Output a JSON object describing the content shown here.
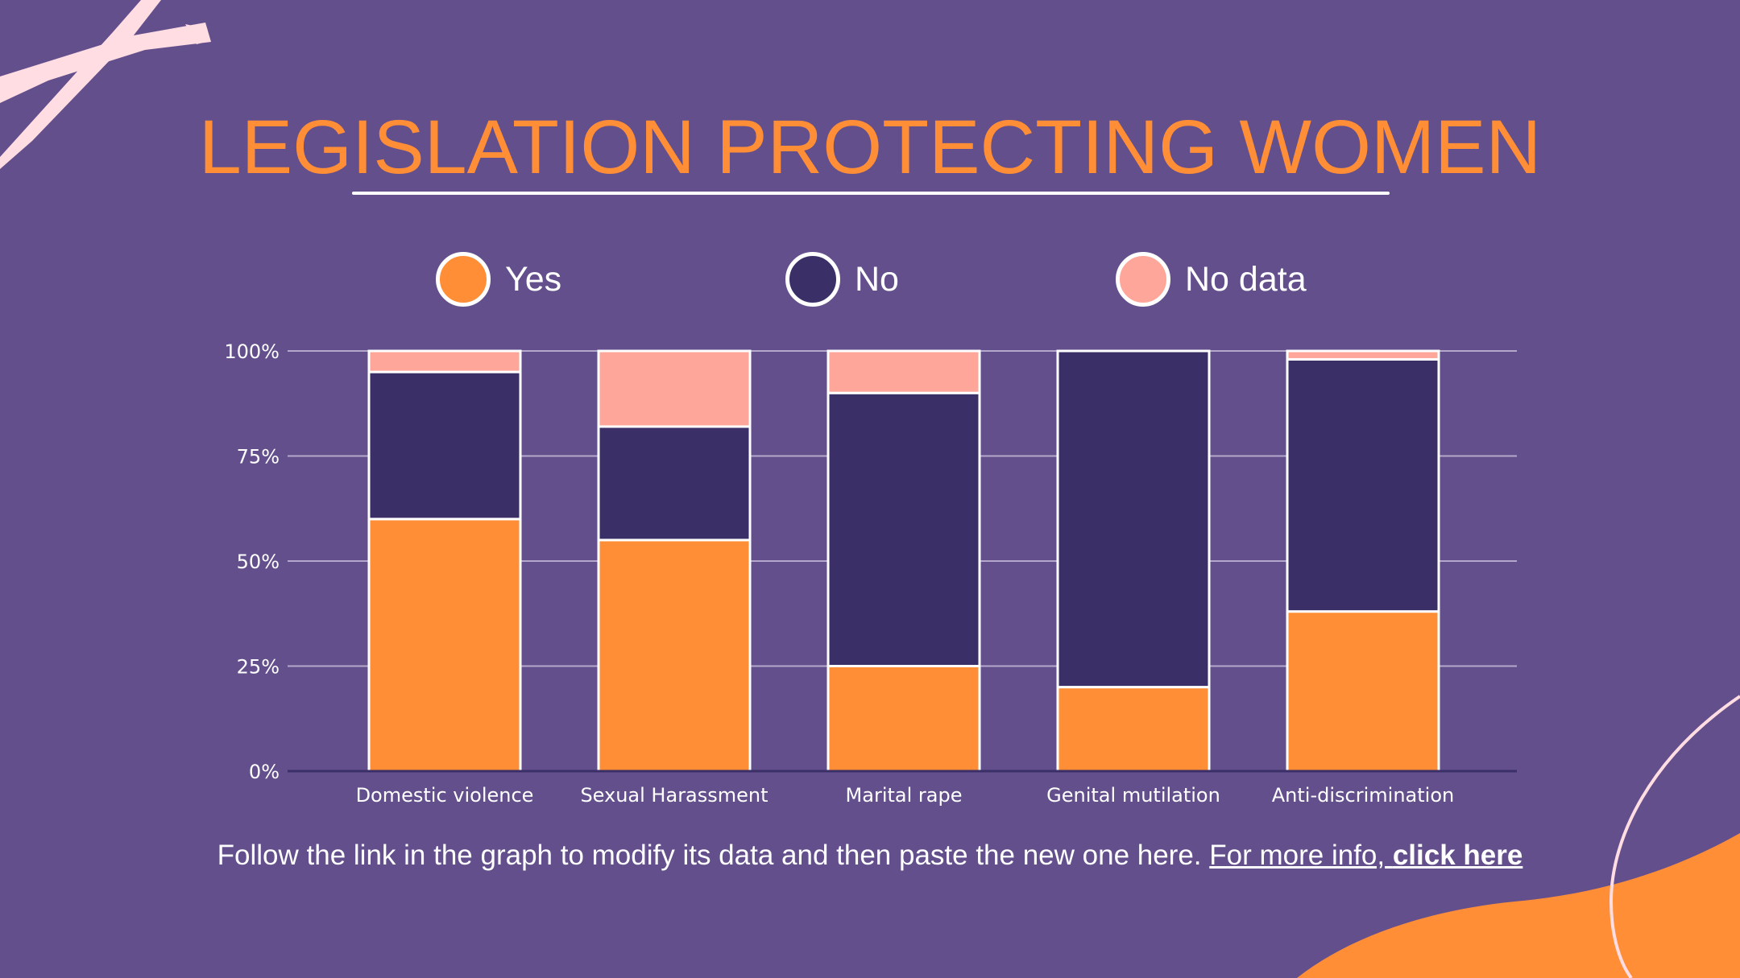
{
  "title": "LEGISLATION PROTECTING WOMEN",
  "colors": {
    "background": "#634f8c",
    "yes": "#ff8e36",
    "no": "#3b2f68",
    "no_data": "#ffa69a",
    "title": "#ff8e36",
    "text": "#ffffff"
  },
  "legend": [
    {
      "label": "Yes",
      "color": "#ff8e36"
    },
    {
      "label": "No",
      "color": "#3b2f68"
    },
    {
      "label": "No data",
      "color": "#ffa69a"
    }
  ],
  "chart_data": {
    "type": "bar",
    "stacked": true,
    "categories": [
      "Domestic violence",
      "Sexual Harassment",
      "Marital rape",
      "Genital mutilation",
      "Anti-discrimination"
    ],
    "series": [
      {
        "name": "Yes",
        "values": [
          60,
          55,
          25,
          20,
          38
        ]
      },
      {
        "name": "No",
        "values": [
          35,
          27,
          65,
          80,
          60
        ]
      },
      {
        "name": "No data",
        "values": [
          5,
          18,
          10,
          0,
          2
        ]
      }
    ],
    "ylim": [
      0,
      100
    ],
    "yticks": [
      0,
      25,
      50,
      75,
      100
    ],
    "ytick_labels": [
      "0%",
      "25%",
      "50%",
      "75%",
      "100%"
    ],
    "grid": true,
    "title": "",
    "xlabel": "",
    "ylabel": ""
  },
  "footer": {
    "text": "Follow the link in the graph to modify its data and then paste the new one here. ",
    "link_prefix": "For more info, ",
    "link_bold": "click here"
  }
}
